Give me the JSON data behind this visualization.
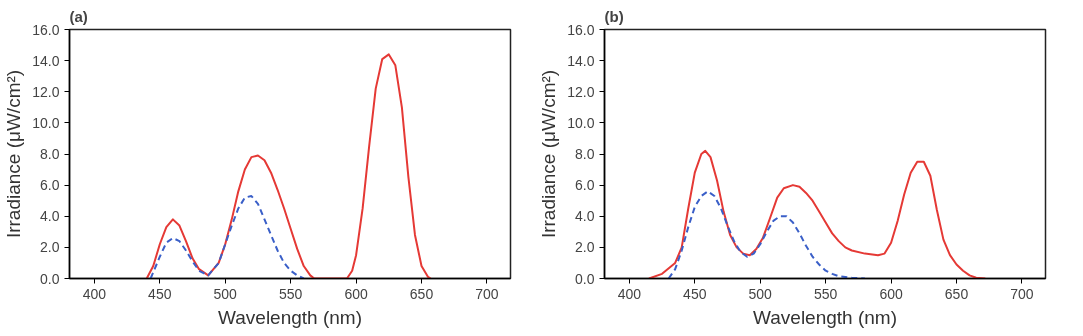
{
  "chart_data": [
    {
      "type": "line",
      "title": "(a)",
      "xlabel": "Wavelength (nm)",
      "ylabel": "Irradiance (μW/cm²)",
      "xlim": [
        381,
        718
      ],
      "xticks": [
        400,
        450,
        500,
        550,
        600,
        650,
        700
      ],
      "ylim": [
        0,
        16
      ],
      "yticks": [
        {
          "value": 0,
          "label": "0.0"
        },
        {
          "value": 2,
          "label": "2.0"
        },
        {
          "value": 4,
          "label": "4.0"
        },
        {
          "value": 6,
          "label": "6.0"
        },
        {
          "value": 8,
          "label": "8.0"
        },
        {
          "value": 10,
          "label": "10.0"
        },
        {
          "value": 12,
          "label": "12.0"
        },
        {
          "value": 14,
          "label": "14.0"
        },
        {
          "value": 16,
          "label": "16.0"
        }
      ],
      "grid": false,
      "series": [
        {
          "color": "#e53935",
          "line_style": "solid",
          "x": [
            440,
            445,
            450,
            455,
            460,
            465,
            470,
            475,
            480,
            487,
            495,
            500,
            505,
            510,
            515,
            520,
            525,
            530,
            535,
            540,
            545,
            550,
            555,
            560,
            565,
            568,
            593,
            597,
            600,
            605,
            610,
            615,
            620,
            625,
            630,
            635,
            640,
            645,
            650,
            655,
            657
          ],
          "values": [
            0,
            0.8,
            2.2,
            3.3,
            3.8,
            3.4,
            2.4,
            1.3,
            0.6,
            0.2,
            1.0,
            2.2,
            3.8,
            5.6,
            7.0,
            7.8,
            7.9,
            7.6,
            6.8,
            5.7,
            4.5,
            3.2,
            1.9,
            0.8,
            0.2,
            0,
            0,
            0.5,
            1.5,
            4.5,
            8.5,
            12.2,
            14.1,
            14.4,
            13.7,
            11.0,
            6.5,
            2.8,
            0.8,
            0.1,
            0
          ]
        },
        {
          "color": "#3a5fc8",
          "line_style": "dashed",
          "x": [
            443,
            450,
            455,
            460,
            465,
            470,
            475,
            480,
            487,
            495,
            500,
            505,
            510,
            515,
            520,
            525,
            530,
            535,
            540,
            545,
            550,
            555,
            560
          ],
          "values": [
            0,
            1.4,
            2.3,
            2.6,
            2.4,
            1.8,
            1.1,
            0.5,
            0.2,
            1.0,
            2.2,
            3.4,
            4.5,
            5.2,
            5.3,
            4.8,
            3.8,
            2.8,
            1.8,
            1.0,
            0.5,
            0.2,
            0
          ]
        }
      ]
    },
    {
      "type": "line",
      "title": "(b)",
      "xlabel": "Wavelength (nm)",
      "ylabel": "Irradiance (μW/cm²)",
      "xlim": [
        381,
        718
      ],
      "xticks": [
        400,
        450,
        500,
        550,
        600,
        650,
        700
      ],
      "ylim": [
        0,
        16
      ],
      "yticks": [
        {
          "value": 0,
          "label": "0.0"
        },
        {
          "value": 2,
          "label": "2.0"
        },
        {
          "value": 4,
          "label": "4.0"
        },
        {
          "value": 6,
          "label": "6.0"
        },
        {
          "value": 8,
          "label": "8.0"
        },
        {
          "value": 10,
          "label": "10.0"
        },
        {
          "value": 12,
          "label": "12.0"
        },
        {
          "value": 14,
          "label": "14.0"
        },
        {
          "value": 16,
          "label": "16.0"
        }
      ],
      "grid": false,
      "series": [
        {
          "color": "#e53935",
          "line_style": "solid",
          "x": [
            415,
            425,
            435,
            440,
            445,
            450,
            455,
            458,
            462,
            467,
            472,
            477,
            482,
            487,
            492,
            497,
            502,
            508,
            513,
            518,
            525,
            530,
            535,
            540,
            545,
            550,
            555,
            560,
            565,
            570,
            580,
            590,
            595,
            600,
            605,
            610,
            615,
            620,
            625,
            630,
            635,
            640,
            645,
            650,
            655,
            660,
            665,
            672
          ],
          "values": [
            0,
            0.3,
            1.0,
            2.0,
            4.5,
            6.8,
            8.0,
            8.2,
            7.8,
            6.3,
            4.3,
            2.8,
            2.0,
            1.6,
            1.5,
            1.9,
            2.6,
            4.0,
            5.2,
            5.8,
            6.0,
            5.9,
            5.5,
            5.0,
            4.3,
            3.6,
            2.9,
            2.4,
            2.0,
            1.8,
            1.6,
            1.5,
            1.6,
            2.3,
            3.7,
            5.4,
            6.8,
            7.5,
            7.5,
            6.6,
            4.4,
            2.5,
            1.5,
            0.9,
            0.5,
            0.2,
            0.05,
            0
          ]
        },
        {
          "color": "#3a5fc8",
          "line_style": "dashed",
          "x": [
            430,
            435,
            440,
            445,
            450,
            455,
            460,
            465,
            470,
            475,
            480,
            485,
            490,
            495,
            500,
            505,
            510,
            515,
            520,
            525,
            530,
            535,
            540,
            545,
            550,
            555,
            560,
            570,
            580
          ],
          "values": [
            0,
            0.6,
            1.8,
            3.3,
            4.6,
            5.3,
            5.6,
            5.3,
            4.5,
            3.4,
            2.4,
            1.7,
            1.4,
            1.6,
            2.2,
            3.0,
            3.7,
            4.0,
            4.0,
            3.6,
            2.9,
            2.1,
            1.4,
            0.9,
            0.5,
            0.3,
            0.15,
            0.05,
            0
          ]
        }
      ]
    }
  ]
}
